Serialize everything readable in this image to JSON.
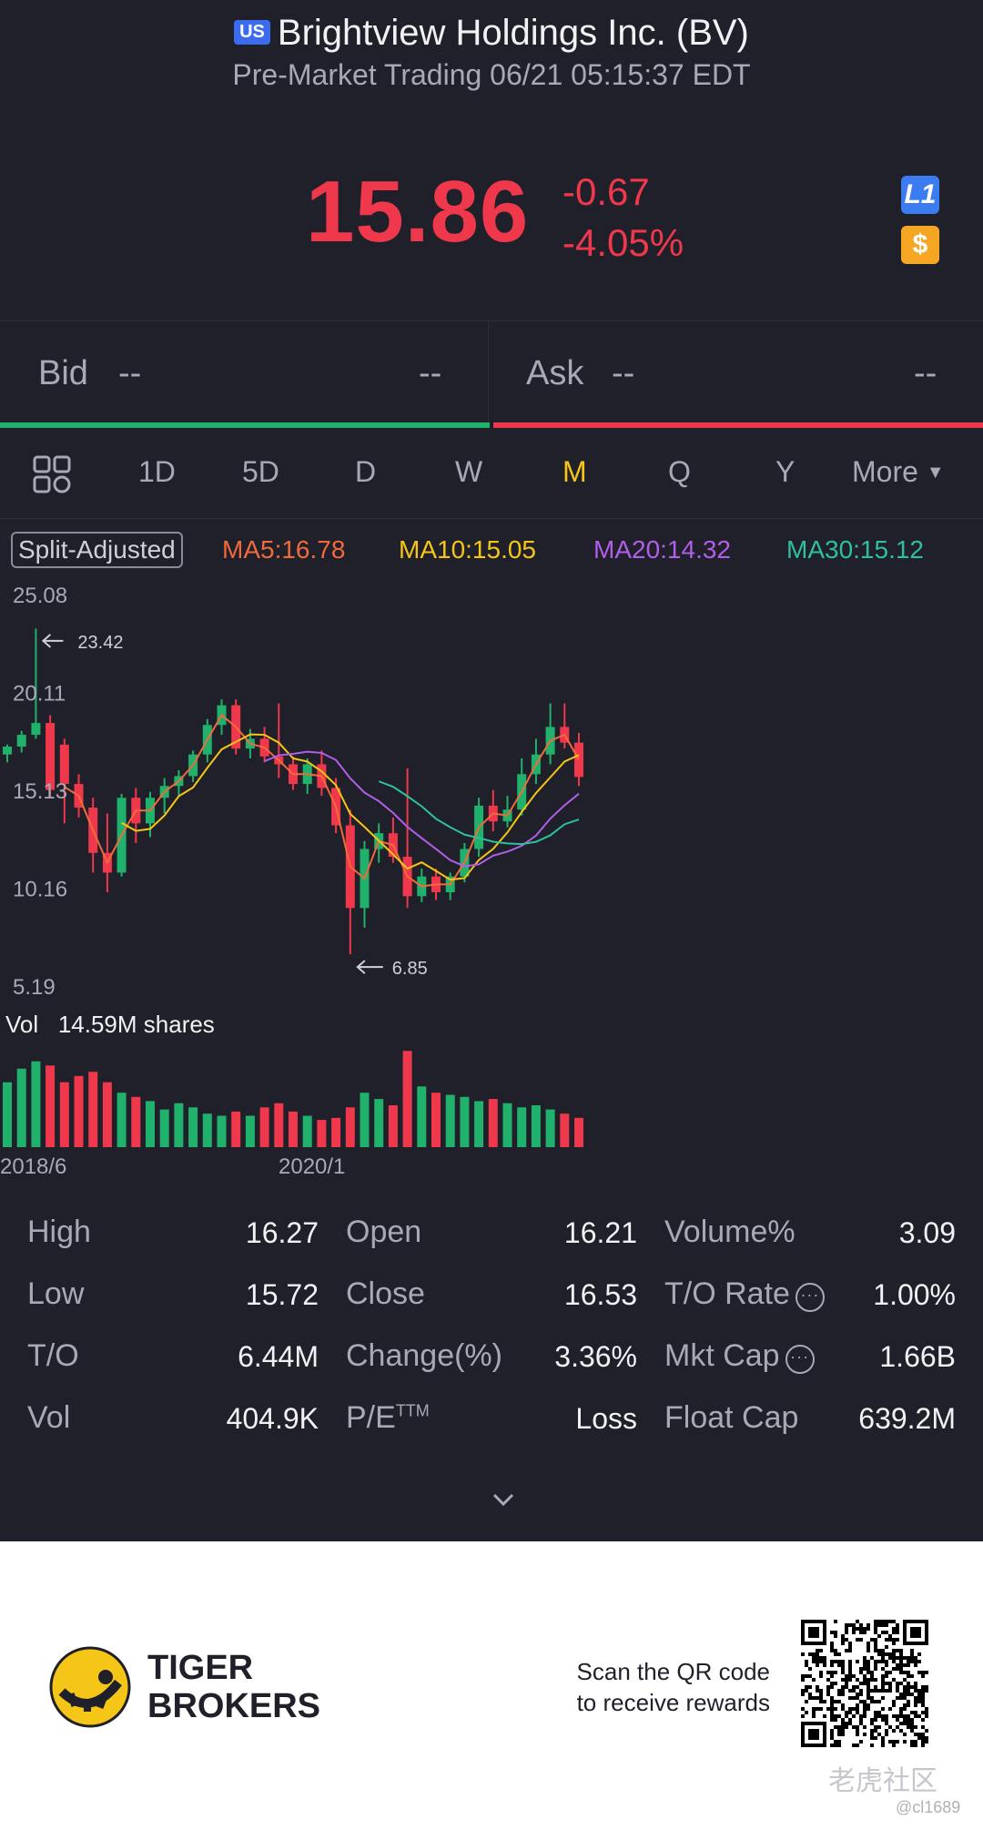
{
  "header": {
    "market_badge": "US",
    "title": "Brightview Holdings Inc. (BV)",
    "subtitle": "Pre-Market Trading 06/21 05:15:37 EDT",
    "price": "15.86",
    "change": "-0.67",
    "change_pct": "-4.05%",
    "l1_badge": "L1",
    "cash_badge": "$",
    "price_color": "#f0384c"
  },
  "quote": {
    "bid_label": "Bid",
    "bid_price": "--",
    "bid_size": "--",
    "ask_label": "Ask",
    "ask_price": "--",
    "ask_size": "--"
  },
  "tabs": {
    "items": [
      "1D",
      "5D",
      "D",
      "W",
      "M",
      "Q",
      "Y",
      "More"
    ],
    "active": "M"
  },
  "indicators": {
    "split": "Split-Adjusted",
    "ma5": "MA5:16.78",
    "ma10": "MA10:15.05",
    "ma20": "MA20:14.32",
    "ma30": "MA30:15.12",
    "colors": {
      "ma5": "#f06a3c",
      "ma10": "#f5c518",
      "ma20": "#b15ee8",
      "ma30": "#2fbf9f"
    }
  },
  "chart_data": {
    "type": "candlestick",
    "y_ticks": [
      "25.08",
      "20.11",
      "15.13",
      "10.16",
      "5.19"
    ],
    "high_marker": "23.42",
    "low_marker": "6.85",
    "x_labels": [
      "2018/6",
      "2020/1"
    ],
    "volume_label": "Vol",
    "volume_value": "14.59M shares",
    "up_color": "#20b26c",
    "down_color": "#f0384c",
    "candles": [
      [
        17.0,
        17.5,
        16.6,
        17.4
      ],
      [
        17.4,
        18.2,
        17.1,
        18.0
      ],
      [
        18.0,
        23.4,
        17.8,
        18.6
      ],
      [
        18.6,
        19.0,
        14.8,
        15.2
      ],
      [
        17.5,
        17.8,
        13.5,
        15.5
      ],
      [
        15.5,
        16.0,
        13.8,
        14.3
      ],
      [
        14.3,
        14.8,
        11.0,
        12.0
      ],
      [
        12.0,
        14.0,
        10.0,
        11.0
      ],
      [
        11.0,
        15.0,
        10.8,
        14.8
      ],
      [
        14.8,
        15.3,
        12.5,
        13.5
      ],
      [
        13.5,
        15.1,
        12.8,
        14.8
      ],
      [
        14.8,
        15.8,
        14.0,
        15.4
      ],
      [
        15.4,
        16.2,
        14.9,
        15.9
      ],
      [
        15.9,
        17.2,
        15.6,
        17.0
      ],
      [
        17.0,
        18.8,
        16.6,
        18.5
      ],
      [
        18.5,
        19.8,
        18.0,
        19.5
      ],
      [
        19.5,
        19.8,
        17.0,
        17.3
      ],
      [
        17.3,
        18.3,
        16.8,
        17.8
      ],
      [
        17.8,
        18.4,
        16.6,
        16.9
      ],
      [
        16.9,
        19.6,
        15.8,
        16.5
      ],
      [
        16.5,
        16.9,
        15.2,
        15.5
      ],
      [
        15.5,
        16.8,
        15.0,
        16.5
      ],
      [
        16.5,
        17.2,
        14.9,
        15.3
      ],
      [
        15.3,
        15.8,
        13.0,
        13.4
      ],
      [
        13.4,
        14.2,
        6.85,
        9.2
      ],
      [
        9.2,
        12.6,
        8.2,
        12.2
      ],
      [
        12.2,
        13.5,
        11.5,
        13.0
      ],
      [
        13.0,
        13.8,
        11.5,
        11.8
      ],
      [
        11.8,
        16.3,
        9.2,
        9.8
      ],
      [
        9.8,
        11.2,
        9.5,
        10.8
      ],
      [
        10.8,
        11.2,
        9.6,
        10.0
      ],
      [
        10.0,
        11.0,
        9.6,
        10.8
      ],
      [
        10.8,
        12.5,
        10.5,
        12.2
      ],
      [
        12.2,
        14.8,
        11.8,
        14.4
      ],
      [
        14.4,
        15.2,
        13.1,
        13.6
      ],
      [
        13.6,
        14.9,
        13.3,
        14.2
      ],
      [
        14.2,
        16.8,
        13.9,
        16.0
      ],
      [
        16.0,
        17.8,
        15.5,
        17.0
      ],
      [
        17.0,
        19.6,
        16.5,
        18.4
      ],
      [
        18.4,
        19.6,
        17.3,
        17.6
      ],
      [
        17.6,
        18.1,
        15.4,
        15.86
      ]
    ]
  },
  "stats": {
    "high_label": "High",
    "high": "16.27",
    "open_label": "Open",
    "open": "16.21",
    "volpct_label": "Volume%",
    "volpct": "3.09",
    "low_label": "Low",
    "low": "15.72",
    "close_label": "Close",
    "close": "16.53",
    "torate_label": "T/O Rate",
    "torate": "1.00%",
    "to_label": "T/O",
    "to": "6.44M",
    "change_label": "Change(%)",
    "change": "3.36%",
    "mktcap_label": "Mkt Cap",
    "mktcap": "1.66B",
    "vol_label": "Vol",
    "vol": "404.9K",
    "pe_label": "P/E",
    "pe_sup": "TTM",
    "pe": "Loss",
    "floatcap_label": "Float Cap",
    "floatcap": "639.2M"
  },
  "footer": {
    "brand_line1": "TIGER",
    "brand_line2": "BROKERS",
    "scan_line1": "Scan the QR code",
    "scan_line2": "to receive rewards",
    "watermark": "老虎社区",
    "handle": "@cl1689"
  }
}
